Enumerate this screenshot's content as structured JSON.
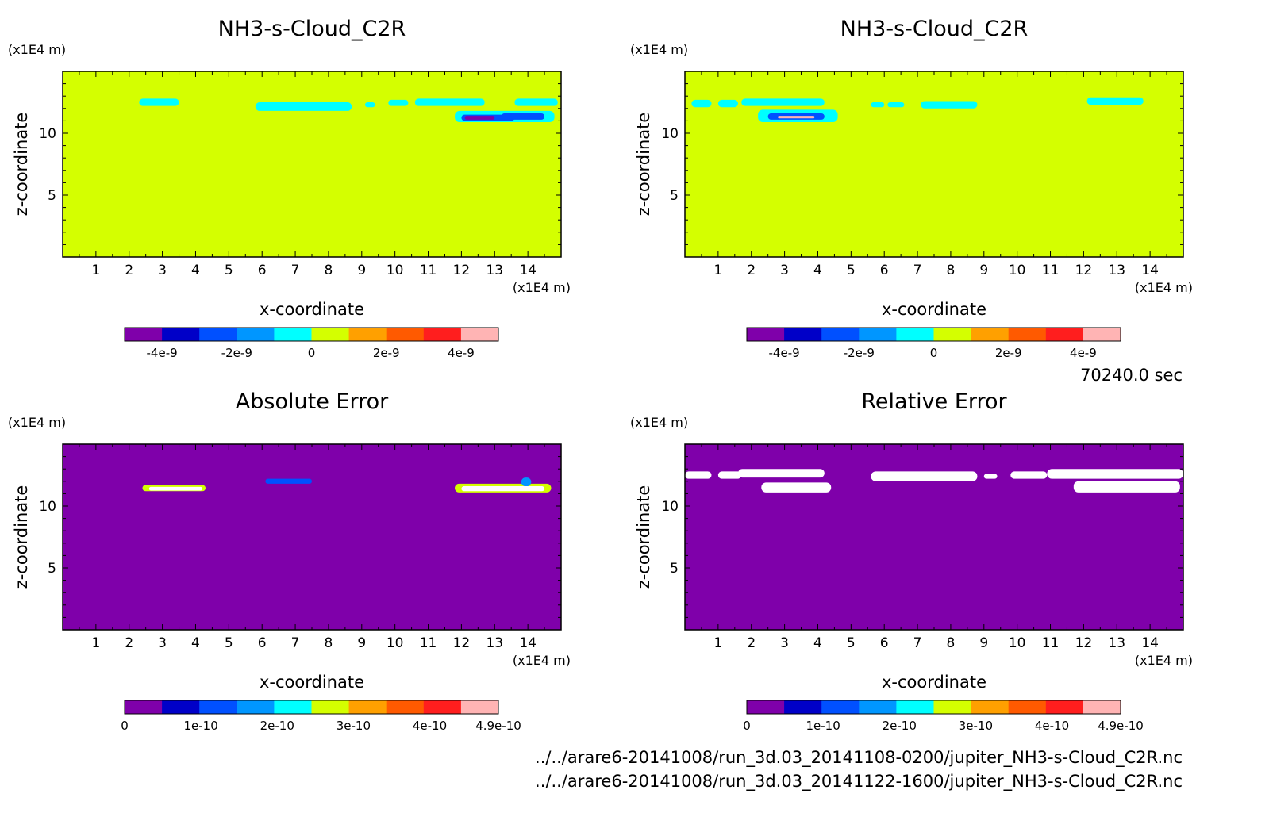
{
  "figure": {
    "time_label": "70240.0 sec",
    "file_paths": [
      "../../arare6-20141008/run_3d.03_20141108-0200/jupiter_NH3-s-Cloud_C2R.nc",
      "../../arare6-20141008/run_3d.03_20141122-1600/jupiter_NH3-s-Cloud_C2R.nc"
    ]
  },
  "chart_data": [
    {
      "type": "heatmap",
      "title": "NH3-s-Cloud_C2R",
      "xlabel": "x-coordinate",
      "ylabel": "z-coordinate",
      "x_unit": "(x1E4 m)",
      "y_unit": "(x1E4 m)",
      "xlim": [
        0,
        15
      ],
      "ylim": [
        0,
        15
      ],
      "x_ticks": [
        1,
        2,
        3,
        4,
        5,
        6,
        7,
        8,
        9,
        10,
        11,
        12,
        13,
        14
      ],
      "y_ticks": [
        5,
        10
      ],
      "background_value": 0,
      "features": [
        {
          "x": [
            2.3,
            3.5
          ],
          "z": [
            12.2,
            12.8
          ],
          "value": -1e-09
        },
        {
          "x": [
            5.8,
            8.7
          ],
          "z": [
            11.8,
            12.5
          ],
          "value": -1e-09
        },
        {
          "x": [
            9.1,
            9.4
          ],
          "z": [
            12.1,
            12.5
          ],
          "value": -1e-09
        },
        {
          "x": [
            9.8,
            10.4
          ],
          "z": [
            12.2,
            12.7
          ],
          "value": -1e-09
        },
        {
          "x": [
            10.6,
            12.7
          ],
          "z": [
            12.2,
            12.8
          ],
          "value": -1e-09
        },
        {
          "x": [
            13.6,
            14.9
          ],
          "z": [
            12.2,
            12.8
          ],
          "value": -1e-09
        },
        {
          "x": [
            11.8,
            14.8
          ],
          "z": [
            10.9,
            11.8
          ],
          "value": -1e-09
        },
        {
          "x": [
            12.0,
            13.6
          ],
          "z": [
            11.0,
            11.5
          ],
          "value": -2.5e-09
        },
        {
          "x": [
            13.2,
            14.5
          ],
          "z": [
            11.1,
            11.6
          ],
          "value": -3e-09
        },
        {
          "x": [
            12.1,
            13.0
          ],
          "z": [
            11.1,
            11.4
          ],
          "value": -4e-09
        }
      ],
      "colorbar": {
        "tick_labels": [
          "-4e-9",
          "-2e-9",
          "0",
          "2e-9",
          "4e-9"
        ],
        "tick_values": [
          -4e-09,
          -2e-09,
          0,
          2e-09,
          4e-09
        ],
        "range": [
          -5e-09,
          5e-09
        ],
        "colors": [
          "#7f00aa",
          "#0000c8",
          "#0050ff",
          "#0096ff",
          "#00ffff",
          "#d4ff00",
          "#ffa000",
          "#ff5a00",
          "#ff1e1e",
          "#ffb4b4"
        ]
      }
    },
    {
      "type": "heatmap",
      "title": "NH3-s-Cloud_C2R",
      "xlabel": "x-coordinate",
      "ylabel": "z-coordinate",
      "x_unit": "(x1E4 m)",
      "y_unit": "(x1E4 m)",
      "xlim": [
        0,
        15
      ],
      "ylim": [
        0,
        15
      ],
      "x_ticks": [
        1,
        2,
        3,
        4,
        5,
        6,
        7,
        8,
        9,
        10,
        11,
        12,
        13,
        14
      ],
      "y_ticks": [
        5,
        10
      ],
      "background_value": 0,
      "features": [
        {
          "x": [
            0.2,
            0.8
          ],
          "z": [
            12.1,
            12.7
          ],
          "value": -1e-09
        },
        {
          "x": [
            1.0,
            1.6
          ],
          "z": [
            12.1,
            12.7
          ],
          "value": -1e-09
        },
        {
          "x": [
            1.7,
            4.2
          ],
          "z": [
            12.2,
            12.8
          ],
          "value": -1e-09
        },
        {
          "x": [
            2.2,
            4.6
          ],
          "z": [
            10.9,
            11.9
          ],
          "value": -1e-09
        },
        {
          "x": [
            2.5,
            4.2
          ],
          "z": [
            11.1,
            11.6
          ],
          "value": -3e-09
        },
        {
          "x": [
            2.8,
            3.9
          ],
          "z": [
            11.2,
            11.4
          ],
          "value": 5e-09
        },
        {
          "x": [
            5.6,
            6.0
          ],
          "z": [
            12.1,
            12.5
          ],
          "value": -1e-09
        },
        {
          "x": [
            6.1,
            6.6
          ],
          "z": [
            12.1,
            12.5
          ],
          "value": -1e-09
        },
        {
          "x": [
            7.1,
            8.8
          ],
          "z": [
            12.0,
            12.6
          ],
          "value": -1e-09
        },
        {
          "x": [
            12.1,
            13.8
          ],
          "z": [
            12.3,
            12.9
          ],
          "value": -1e-09
        }
      ],
      "colorbar": {
        "tick_labels": [
          "-4e-9",
          "-2e-9",
          "0",
          "2e-9",
          "4e-9"
        ],
        "tick_values": [
          -4e-09,
          -2e-09,
          0,
          2e-09,
          4e-09
        ],
        "range": [
          -5e-09,
          5e-09
        ],
        "colors": [
          "#7f00aa",
          "#0000c8",
          "#0050ff",
          "#0096ff",
          "#00ffff",
          "#d4ff00",
          "#ffa000",
          "#ff5a00",
          "#ff1e1e",
          "#ffb4b4"
        ]
      }
    },
    {
      "type": "heatmap",
      "title": "Absolute Error",
      "xlabel": "x-coordinate",
      "ylabel": "z-coordinate",
      "x_unit": "(x1E4 m)",
      "y_unit": "(x1E4 m)",
      "xlim": [
        0,
        15
      ],
      "ylim": [
        0,
        15
      ],
      "x_ticks": [
        1,
        2,
        3,
        4,
        5,
        6,
        7,
        8,
        9,
        10,
        11,
        12,
        13,
        14
      ],
      "y_ticks": [
        5,
        10
      ],
      "background_value": 0,
      "features": [
        {
          "x": [
            2.4,
            4.3
          ],
          "z": [
            11.2,
            11.7
          ],
          "value": 2.5e-10
        },
        {
          "x": [
            2.6,
            4.2
          ],
          "z": [
            11.25,
            11.55
          ],
          "value": 1e-09
        },
        {
          "x": [
            6.1,
            7.5
          ],
          "z": [
            11.8,
            12.2
          ],
          "value": 1.2e-10
        },
        {
          "x": [
            11.8,
            14.7
          ],
          "z": [
            11.1,
            11.8
          ],
          "value": 2.5e-10
        },
        {
          "x": [
            12.0,
            14.5
          ],
          "z": [
            11.2,
            11.6
          ],
          "value": 1e-09
        },
        {
          "x": [
            13.8,
            14.1
          ],
          "z": [
            11.6,
            12.3
          ],
          "value": 1.5e-10
        }
      ],
      "colorbar": {
        "tick_labels": [
          "0",
          "1e-10",
          "2e-10",
          "3e-10",
          "4e-10",
          "4.9e-10"
        ],
        "tick_values": [
          0,
          1e-10,
          2e-10,
          3e-10,
          4e-10,
          4.9e-10
        ],
        "range": [
          0,
          4.9e-10
        ],
        "colors": [
          "#7f00aa",
          "#0000c8",
          "#0050ff",
          "#0096ff",
          "#00ffff",
          "#d4ff00",
          "#ffa000",
          "#ff5a00",
          "#ff1e1e",
          "#ffb4b4"
        ]
      }
    },
    {
      "type": "heatmap",
      "title": "Relative Error",
      "xlabel": "x-coordinate",
      "ylabel": "z-coordinate",
      "x_unit": "(x1E4 m)",
      "y_unit": "(x1E4 m)",
      "xlim": [
        0,
        15
      ],
      "ylim": [
        0,
        15
      ],
      "x_ticks": [
        1,
        2,
        3,
        4,
        5,
        6,
        7,
        8,
        9,
        10,
        11,
        12,
        13,
        14
      ],
      "y_ticks": [
        5,
        10
      ],
      "background_value": 0,
      "features": [
        {
          "x": [
            0.0,
            0.8
          ],
          "z": [
            12.2,
            12.8
          ],
          "value": 1e-09
        },
        {
          "x": [
            1.0,
            1.7
          ],
          "z": [
            12.2,
            12.8
          ],
          "value": 1e-09
        },
        {
          "x": [
            1.6,
            4.2
          ],
          "z": [
            12.3,
            13.0
          ],
          "value": 1e-09
        },
        {
          "x": [
            2.3,
            4.4
          ],
          "z": [
            11.1,
            11.9
          ],
          "value": 1e-09
        },
        {
          "x": [
            5.6,
            8.8
          ],
          "z": [
            12.0,
            12.8
          ],
          "value": 1e-09
        },
        {
          "x": [
            9.0,
            9.4
          ],
          "z": [
            12.2,
            12.6
          ],
          "value": 1e-09
        },
        {
          "x": [
            9.8,
            10.9
          ],
          "z": [
            12.2,
            12.8
          ],
          "value": 1e-09
        },
        {
          "x": [
            10.9,
            15.0
          ],
          "z": [
            12.2,
            13.0
          ],
          "value": 1e-09
        },
        {
          "x": [
            11.7,
            14.9
          ],
          "z": [
            11.1,
            12.0
          ],
          "value": 1e-09
        }
      ],
      "colorbar": {
        "tick_labels": [
          "0",
          "1e-10",
          "2e-10",
          "3e-10",
          "4e-10",
          "4.9e-10"
        ],
        "tick_values": [
          0,
          1e-10,
          2e-10,
          3e-10,
          4e-10,
          4.9e-10
        ],
        "range": [
          0,
          4.9e-10
        ],
        "colors": [
          "#7f00aa",
          "#0000c8",
          "#0050ff",
          "#0096ff",
          "#00ffff",
          "#d4ff00",
          "#ffa000",
          "#ff5a00",
          "#ff1e1e",
          "#ffb4b4"
        ]
      }
    }
  ]
}
